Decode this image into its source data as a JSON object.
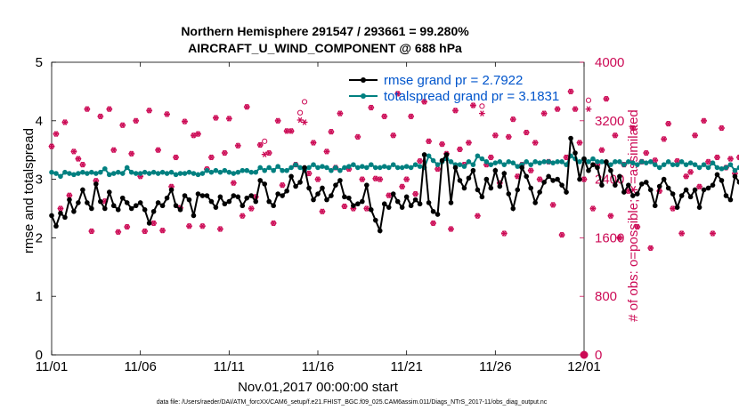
{
  "colors": {
    "rmse": "#000000",
    "spread": "#008080",
    "obs": "#cc0a55",
    "legend_text": "#0055cc"
  },
  "chart_data": {
    "type": "line",
    "title": "Northern Hemisphere 291547 / 293661 = 99.280%",
    "subtitle": "AIRCRAFT_U_WIND_COMPONENT @ 688 hPa",
    "xlabel": "Nov.01,2017 00:00:00 start",
    "ylabel": "rmse and totalspread",
    "y2label": "# of obs: o=possible; ∗=assimilated",
    "footer": "data file: /Users/raeder/DAI/ATM_forcXX/CAM6_setup/f.e21.FHIST_BGC.f09_025.CAM6assim.011/Diags_NTrS_2017-11/obs_diag_output.nc",
    "xlim": [
      0,
      30
    ],
    "ylim": [
      0,
      5
    ],
    "y2lim": [
      0,
      4000
    ],
    "xticks": [
      0,
      5,
      10,
      15,
      20,
      25,
      30
    ],
    "xtick_labels": [
      "11/01",
      "11/06",
      "11/11",
      "11/16",
      "11/21",
      "11/26",
      "12/01"
    ],
    "yticks": [
      0,
      1,
      2,
      3,
      4,
      5
    ],
    "ytick_labels": [
      "0",
      "1",
      "2",
      "3",
      "4",
      "5"
    ],
    "y2ticks": [
      0,
      800,
      1600,
      2400,
      3200,
      4000
    ],
    "y2tick_labels": [
      "0",
      "800",
      "1600",
      "2400",
      "3200",
      "4000"
    ],
    "legend": [
      "rmse grand pr = 2.7922",
      "totalspread grand pr = 3.1831"
    ],
    "legend_location": "top-right",
    "x_step_days": 0.25,
    "series": [
      {
        "name": "rmse grand pr = 2.7922",
        "axis": "left",
        "marker": "dot",
        "values": [
          2.38,
          2.2,
          2.42,
          2.35,
          2.65,
          2.45,
          2.6,
          2.82,
          2.6,
          2.5,
          2.92,
          2.62,
          2.5,
          2.78,
          2.55,
          2.48,
          2.68,
          2.6,
          2.5,
          2.55,
          2.6,
          2.48,
          2.25,
          2.45,
          2.6,
          2.55,
          2.68,
          2.82,
          2.55,
          2.48,
          2.72,
          2.65,
          2.38,
          2.75,
          2.72,
          2.72,
          2.62,
          2.52,
          2.7,
          2.58,
          2.62,
          2.72,
          2.7,
          2.55,
          2.68,
          2.72,
          2.62,
          2.98,
          2.92,
          2.62,
          2.55,
          2.75,
          2.72,
          2.8,
          3.05,
          2.88,
          2.95,
          3.2,
          2.85,
          2.65,
          2.75,
          2.85,
          2.65,
          2.72,
          2.9,
          2.98,
          2.7,
          2.68,
          2.55,
          2.58,
          2.62,
          2.9,
          2.48,
          2.3,
          2.12,
          2.58,
          2.52,
          2.75,
          2.62,
          2.52,
          2.7,
          2.55,
          2.65,
          2.58,
          3.42,
          2.6,
          2.45,
          2.4,
          3.32,
          3.42,
          2.6,
          3.2,
          2.98,
          2.85,
          3.02,
          3.15,
          2.82,
          2.7,
          3.0,
          2.85,
          3.15,
          2.88,
          3.1,
          2.75,
          2.5,
          2.82,
          3.2,
          3.05,
          2.85,
          2.6,
          2.78,
          2.95,
          3.05,
          2.98,
          3.0,
          2.9,
          2.78,
          3.7,
          3.45,
          3.0,
          3.35,
          3.15,
          3.25,
          3.2,
          2.9,
          3.3,
          3.15,
          2.9,
          3.05,
          2.78,
          2.9,
          2.72,
          2.75,
          2.92,
          2.95,
          2.82,
          2.55,
          2.88,
          3.0,
          2.85,
          2.75,
          2.52,
          2.72,
          2.82,
          2.7,
          2.82,
          2.52,
          2.82,
          2.85,
          2.9,
          3.08,
          2.98,
          2.72,
          2.65,
          3.05,
          2.95,
          2.82,
          3.05,
          2.88,
          2.75,
          2.82,
          2.62,
          2.8,
          2.92,
          2.95,
          2.72,
          2.62,
          2.58
        ]
      },
      {
        "name": "totalspread grand pr = 3.1831",
        "axis": "left",
        "marker": "dot",
        "values": [
          3.12,
          3.1,
          3.05,
          3.12,
          3.1,
          3.08,
          3.1,
          3.12,
          3.1,
          3.12,
          3.1,
          3.12,
          3.18,
          3.08,
          3.1,
          3.12,
          3.1,
          3.2,
          3.12,
          3.1,
          3.1,
          3.12,
          3.1,
          3.12,
          3.1,
          3.12,
          3.1,
          3.12,
          3.08,
          3.1,
          3.1,
          3.12,
          3.1,
          3.08,
          3.1,
          3.15,
          3.12,
          3.15,
          3.12,
          3.15,
          3.12,
          3.1,
          3.12,
          3.15,
          3.15,
          3.12,
          3.12,
          3.2,
          3.15,
          3.2,
          3.15,
          3.22,
          3.15,
          3.15,
          3.2,
          3.25,
          3.2,
          3.15,
          3.2,
          3.25,
          3.2,
          3.22,
          3.2,
          3.15,
          3.2,
          3.15,
          3.2,
          3.22,
          3.25,
          3.2,
          3.22,
          3.2,
          3.25,
          3.2,
          3.2,
          3.22,
          3.2,
          3.25,
          3.2,
          3.2,
          3.22,
          3.2,
          3.25,
          3.22,
          3.2,
          3.4,
          3.32,
          3.25,
          3.3,
          3.35,
          3.3,
          3.25,
          3.25,
          3.22,
          3.3,
          3.25,
          3.4,
          3.35,
          3.3,
          3.25,
          3.28,
          3.3,
          3.25,
          3.3,
          3.28,
          3.22,
          3.25,
          3.3,
          3.25,
          3.3,
          3.28,
          3.3,
          3.3,
          3.28,
          3.3,
          3.3,
          3.25,
          3.4,
          3.35,
          3.3,
          3.35,
          3.3,
          3.35,
          3.3,
          3.3,
          3.28,
          3.25,
          3.3,
          3.3,
          3.25,
          3.3,
          3.28,
          3.25,
          3.3,
          3.28,
          3.3,
          3.25,
          3.2,
          3.25,
          3.3,
          3.25,
          3.25,
          3.3,
          3.25,
          3.28,
          3.25,
          3.2,
          3.25,
          3.2,
          3.28,
          3.2,
          3.18,
          3.2,
          3.25,
          3.15,
          3.2,
          3.22,
          3.18,
          3.3,
          3.2,
          3.15,
          3.2,
          3.15,
          3.2,
          3.25,
          3.15,
          3.2,
          3.12
        ]
      },
      {
        "name": "obs possible",
        "axis": "right",
        "marker": "o",
        "values": [
          2850,
          3020,
          2000,
          3180,
          2180,
          2780,
          2680,
          2600,
          3360,
          1690,
          2380,
          3260,
          2100,
          3360,
          2800,
          1680,
          3140,
          1750,
          2750,
          3200,
          2440,
          1690,
          3340,
          1800,
          2800,
          1700,
          3290,
          2300,
          2700,
          2010,
          3190,
          1760,
          3000,
          3020,
          1760,
          2540,
          2700,
          3240,
          1720,
          2760,
          3230,
          2350,
          2860,
          1900,
          3390,
          2000,
          2160,
          2870,
          2920,
          2760,
          1800,
          3200,
          2320,
          3060,
          3060,
          2600,
          3310,
          3460,
          2480,
          2900,
          2400,
          1960,
          2780,
          3050,
          2560,
          3300,
          2030,
          2540,
          2000,
          2980,
          2400,
          2000,
          3380,
          2410,
          2400,
          3260,
          2180,
          3000,
          3570,
          2300,
          2400,
          3260,
          2200,
          2650,
          3460,
          2920,
          1800,
          2540,
          2880,
          2750,
          1720,
          3340,
          2810,
          2600,
          2900,
          3410,
          1900,
          3400,
          2600,
          2700,
          3000,
          2350,
          1660,
          2980,
          3220,
          2440,
          2600,
          3040,
          2520,
          2900,
          2400,
          3300,
          2640,
          2050,
          3360,
          1640,
          2700,
          3600,
          3360,
          2900,
          2400,
          3480,
          2000,
          2600,
          2800,
          3500,
          1900,
          3000,
          1600,
          2600,
          2240,
          3100,
          1750,
          2640,
          2760,
          1460,
          2660,
          2240,
          2950,
          3160,
          2000,
          2650,
          1660,
          2440,
          2500,
          3000,
          2300,
          3200,
          2640,
          1660,
          2700,
          3100,
          2560,
          2680,
          2480,
          2700,
          3100,
          2560,
          1660,
          2400,
          2600,
          2750,
          1700,
          3000,
          2600,
          2560,
          1660,
          2580,
          2660,
          1660,
          2600,
          2550
        ]
      },
      {
        "name": "obs assimilated",
        "axis": "right",
        "marker": "*",
        "values": [
          2850,
          3020,
          2000,
          3180,
          2180,
          2780,
          2680,
          2600,
          3360,
          1690,
          2380,
          3260,
          2100,
          3360,
          2800,
          1680,
          3140,
          1750,
          2750,
          3200,
          2440,
          1690,
          3340,
          1800,
          2800,
          1700,
          3290,
          2300,
          2700,
          2010,
          3190,
          1760,
          3000,
          3020,
          1760,
          2540,
          2700,
          3240,
          1720,
          2760,
          3230,
          2350,
          2860,
          1900,
          3390,
          2000,
          2160,
          2870,
          2740,
          2760,
          1800,
          3200,
          2320,
          3060,
          3060,
          2600,
          3210,
          3180,
          2480,
          2900,
          2400,
          1960,
          2780,
          3050,
          2560,
          3300,
          2030,
          2540,
          2000,
          2980,
          2400,
          2000,
          3380,
          2410,
          2400,
          3260,
          2180,
          3000,
          3570,
          2300,
          2400,
          3260,
          2200,
          2650,
          3460,
          2920,
          1800,
          2540,
          2880,
          2750,
          1720,
          3340,
          2810,
          2600,
          2900,
          3410,
          1900,
          3300,
          2600,
          2700,
          3000,
          2350,
          1660,
          2980,
          3220,
          2440,
          2600,
          3040,
          2520,
          2900,
          2400,
          3300,
          2640,
          2050,
          3360,
          1640,
          2700,
          3600,
          3360,
          2900,
          2400,
          3360,
          2000,
          2600,
          2800,
          3500,
          1900,
          3000,
          1600,
          2600,
          2240,
          3100,
          1750,
          2640,
          2760,
          1460,
          2660,
          2240,
          2950,
          3160,
          2000,
          2650,
          1660,
          2440,
          2500,
          3000,
          2300,
          3200,
          2640,
          1660,
          2700,
          3100,
          2560,
          2680,
          2480,
          2700,
          3100,
          2560,
          1660,
          2400,
          2600,
          2750,
          1700,
          3000,
          2600,
          2560,
          1660,
          2580,
          2660,
          1660,
          2600,
          2550
        ]
      },
      {
        "name": "obs end marker",
        "axis": "right",
        "marker": "filled",
        "points": [
          [
            30,
            0
          ]
        ]
      }
    ]
  }
}
